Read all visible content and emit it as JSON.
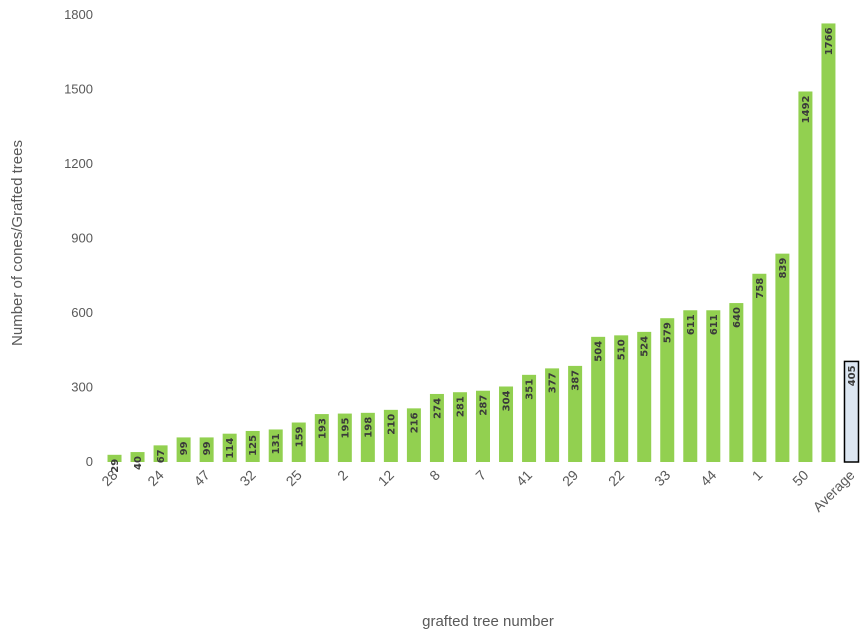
{
  "chart_data": {
    "type": "bar",
    "ylabel": "Number of cones/Grafted trees",
    "xlabel": "grafted tree number",
    "ylim": [
      0,
      1800
    ],
    "yticks": [
      0,
      300,
      600,
      900,
      1200,
      1500,
      1800
    ],
    "grid": false,
    "categories": [
      "28",
      "",
      "24",
      "",
      "47",
      "",
      "32",
      "",
      "25",
      "",
      "2",
      "",
      "12",
      "",
      "8",
      "",
      "7",
      "",
      "41",
      "",
      "29",
      "",
      "22",
      "",
      "33",
      "",
      "44",
      "",
      "1",
      "",
      "50",
      "",
      "Average"
    ],
    "values": [
      29,
      40,
      67,
      99,
      99,
      114,
      125,
      131,
      159,
      193,
      195,
      198,
      210,
      216,
      274,
      281,
      287,
      304,
      351,
      377,
      387,
      504,
      510,
      524,
      579,
      611,
      611,
      640,
      758,
      839,
      1492,
      1766,
      405
    ],
    "bar_color": "#92d050",
    "average_bar_color": "#dce6f2",
    "average_bar_outline": "#000000"
  }
}
